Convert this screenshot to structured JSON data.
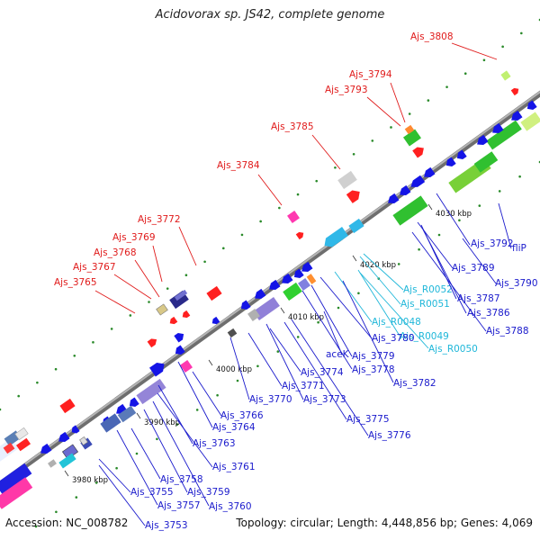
{
  "title": "Acidovorax sp. JS42, complete genome",
  "footer": {
    "accession": "Accession: NC_008782",
    "topology": "Topology: circular; Length: 4,448,856 bp; Genes: 4,069"
  },
  "colors": {
    "backbone": "#8c8c8c",
    "gene_blue": "#1414e6",
    "label_blue": "#1a1acc",
    "label_red": "#e01b1b",
    "label_cyan": "#1fb7d9",
    "dot_green": "#2a8a2a",
    "leader_gray": "#888888"
  },
  "kbp_ticks": [
    "3980 kbp",
    "3990 kbp",
    "4000 kbp",
    "4010 kbp",
    "4020 kbp",
    "4030 kbp"
  ],
  "labels": [
    {
      "text": "Ajs_3808",
      "color": "red"
    },
    {
      "text": "Ajs_3794",
      "color": "red"
    },
    {
      "text": "Ajs_3793",
      "color": "red"
    },
    {
      "text": "Ajs_3785",
      "color": "red"
    },
    {
      "text": "Ajs_3784",
      "color": "red"
    },
    {
      "text": "Ajs_3772",
      "color": "red"
    },
    {
      "text": "Ajs_3769",
      "color": "red"
    },
    {
      "text": "Ajs_3768",
      "color": "red"
    },
    {
      "text": "Ajs_3767",
      "color": "red"
    },
    {
      "text": "Ajs_3765",
      "color": "red"
    },
    {
      "text": "Ajs_3792",
      "color": "blue"
    },
    {
      "text": "fliP",
      "color": "blue"
    },
    {
      "text": "Ajs_3789",
      "color": "blue"
    },
    {
      "text": "Ajs_3790",
      "color": "blue"
    },
    {
      "text": "Ajs_R0052",
      "color": "cyan"
    },
    {
      "text": "Ajs_3787",
      "color": "blue"
    },
    {
      "text": "Ajs_R0051",
      "color": "cyan"
    },
    {
      "text": "Ajs_3786",
      "color": "blue"
    },
    {
      "text": "Ajs_R0048",
      "color": "cyan"
    },
    {
      "text": "Ajs_3788",
      "color": "blue"
    },
    {
      "text": "Ajs_R0049",
      "color": "cyan"
    },
    {
      "text": "Ajs_3780",
      "color": "blue"
    },
    {
      "text": "Ajs_R0050",
      "color": "cyan"
    },
    {
      "text": "aceK",
      "color": "blue"
    },
    {
      "text": "Ajs_3779",
      "color": "blue"
    },
    {
      "text": "Ajs_3778",
      "color": "blue"
    },
    {
      "text": "Ajs_3774",
      "color": "blue"
    },
    {
      "text": "Ajs_3782",
      "color": "blue"
    },
    {
      "text": "Ajs_3771",
      "color": "blue"
    },
    {
      "text": "Ajs_3770",
      "color": "blue"
    },
    {
      "text": "Ajs_3773",
      "color": "blue"
    },
    {
      "text": "Ajs_3766",
      "color": "blue"
    },
    {
      "text": "Ajs_3775",
      "color": "blue"
    },
    {
      "text": "Ajs_3764",
      "color": "blue"
    },
    {
      "text": "Ajs_3776",
      "color": "blue"
    },
    {
      "text": "Ajs_3763",
      "color": "blue"
    },
    {
      "text": "Ajs_3761",
      "color": "blue"
    },
    {
      "text": "Ajs_3758",
      "color": "blue"
    },
    {
      "text": "Ajs_3755",
      "color": "blue"
    },
    {
      "text": "Ajs_3759",
      "color": "blue"
    },
    {
      "text": "Ajs_3757",
      "color": "blue"
    },
    {
      "text": "Ajs_3760",
      "color": "blue"
    },
    {
      "text": "Ajs_3753",
      "color": "blue"
    }
  ]
}
